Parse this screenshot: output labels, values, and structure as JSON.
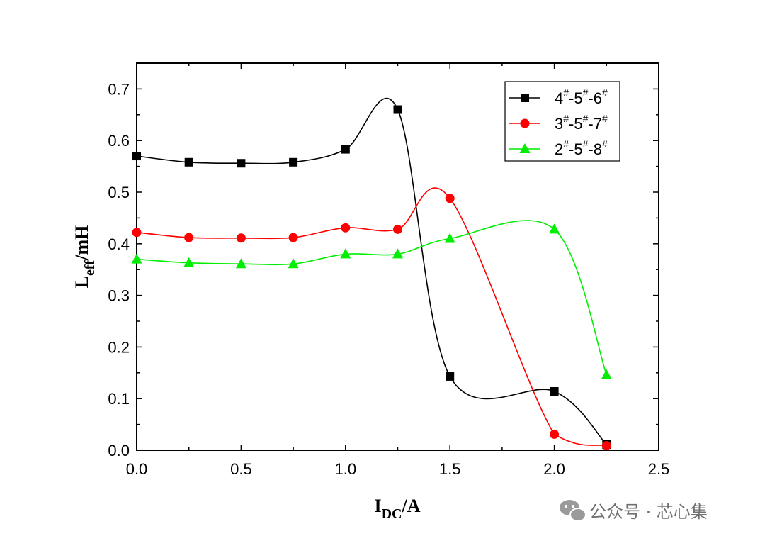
{
  "chart_data": {
    "type": "line",
    "xlabel": {
      "main": "I",
      "sub": "DC",
      "rest": "/A"
    },
    "ylabel": {
      "main": "L",
      "sub": "eff",
      "rest": "/mH"
    },
    "xlim": [
      0,
      2.5
    ],
    "ylim": [
      0,
      0.75
    ],
    "xticks": [
      0,
      0.5,
      1.0,
      1.5,
      2.0,
      2.5
    ],
    "xtick_labels": [
      "0.0",
      "0.5",
      "1.0",
      "1.5",
      "2.0",
      "2.5"
    ],
    "yticks": [
      0,
      0.1,
      0.2,
      0.3,
      0.4,
      0.5,
      0.6,
      0.7
    ],
    "ytick_labels": [
      "0.0",
      "0.1",
      "0.2",
      "0.3",
      "0.4",
      "0.5",
      "0.6",
      "0.7"
    ],
    "grid": false,
    "legend_position": "top-right",
    "series": [
      {
        "name": "4#-5#-6#",
        "name_parts": [
          "4",
          "#",
          "-5",
          "#",
          "-6",
          "#"
        ],
        "color": "#000000",
        "marker": "square",
        "x": [
          0,
          0.25,
          0.5,
          0.75,
          1.0,
          1.25,
          1.5,
          2.0,
          2.25
        ],
        "y": [
          0.57,
          0.558,
          0.556,
          0.558,
          0.583,
          0.66,
          0.143,
          0.114,
          0.011
        ]
      },
      {
        "name": "3#-5#-7#",
        "name_parts": [
          "3",
          "#",
          "-5",
          "#",
          "-7",
          "#"
        ],
        "color": "#ff0000",
        "marker": "circle",
        "x": [
          0,
          0.25,
          0.5,
          0.75,
          1.0,
          1.25,
          1.5,
          2.0,
          2.25
        ],
        "y": [
          0.422,
          0.412,
          0.411,
          0.412,
          0.431,
          0.428,
          0.488,
          0.031,
          0.009
        ]
      },
      {
        "name": "2#-5#-8#",
        "name_parts": [
          "2",
          "#",
          "-5",
          "#",
          "-8",
          "#"
        ],
        "color": "#00ee00",
        "marker": "triangle",
        "x": [
          0,
          0.25,
          0.5,
          0.75,
          1.0,
          1.25,
          1.5,
          2.0,
          2.25
        ],
        "y": [
          0.37,
          0.363,
          0.361,
          0.361,
          0.38,
          0.38,
          0.41,
          0.428,
          0.146
        ]
      }
    ]
  },
  "watermark": {
    "icon": "wechat-icon",
    "text": "公众号 · 芯心集"
  }
}
